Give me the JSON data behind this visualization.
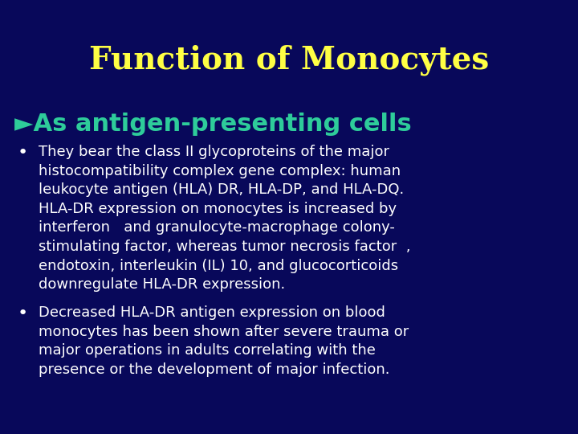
{
  "title": "Function of Monocytes",
  "title_color": "#FFFF44",
  "title_fontsize": 28,
  "subtitle": "►As antigen-presenting cells",
  "subtitle_color": "#2ECC9A",
  "subtitle_fontsize": 22,
  "background_color": "#08085A",
  "bullet_color": "#FFFFFF",
  "bullet_fontsize": 13,
  "bullet1": "They bear the class II glycoproteins of the major\nhistocompatibility complex gene complex: human\nleukocyte antigen (HLA) DR, HLA-DP, and HLA-DQ.\nHLA-DR expression on monocytes is increased by\ninterferon   and granulocyte-macrophage colony-\nstimulating factor, whereas tumor necrosis factor  ,\nendotoxin, interleukin (IL) 10, and glucocorticoids\ndownregulate HLA-DR expression.",
  "bullet2": "Decreased HLA-DR antigen expression on blood\nmonocytes has been shown after severe trauma or\nmajor operations in adults correlating with the\npresence or the development of major infection."
}
